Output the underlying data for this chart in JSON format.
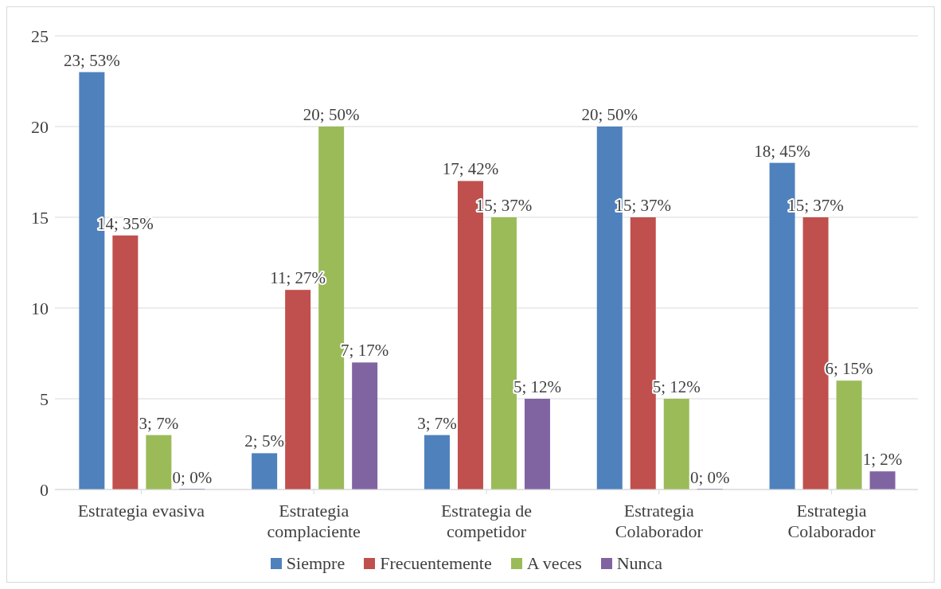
{
  "chart_data": {
    "type": "bar",
    "categories": [
      "Estrategia evasiva",
      "Estrategia complaciente",
      "Estrategia de competidor",
      "Estrategia Colaborador",
      "Estrategia Colaborador"
    ],
    "series": [
      {
        "name": "Siempre",
        "color": "#4f81bd",
        "values": [
          23,
          2,
          3,
          20,
          18
        ],
        "value_labels": [
          "23; 53%",
          "2; 5%",
          "3; 7%",
          "20; 50%",
          "18; 45%"
        ]
      },
      {
        "name": "Frecuentemente",
        "color": "#c0504d",
        "values": [
          14,
          11,
          17,
          15,
          15
        ],
        "value_labels": [
          "14; 35%",
          "11; 27%",
          "17; 42%",
          "15; 37%",
          "15; 37%"
        ]
      },
      {
        "name": "A veces",
        "color": "#9bbb59",
        "values": [
          3,
          20,
          15,
          5,
          6
        ],
        "value_labels": [
          "3; 7%",
          "20; 50%",
          "15; 37%",
          "5; 12%",
          "6; 15%"
        ]
      },
      {
        "name": "Nunca",
        "color": "#8064a2",
        "values": [
          0,
          7,
          5,
          0,
          1
        ],
        "value_labels": [
          "0; 0%",
          "7; 17%",
          "5; 12%",
          "0; 0%",
          "1; 2%"
        ]
      }
    ],
    "ylim": [
      0,
      25
    ],
    "yticks": [
      0,
      5,
      10,
      15,
      20,
      25
    ],
    "grid": "y",
    "legend": "bottom"
  }
}
